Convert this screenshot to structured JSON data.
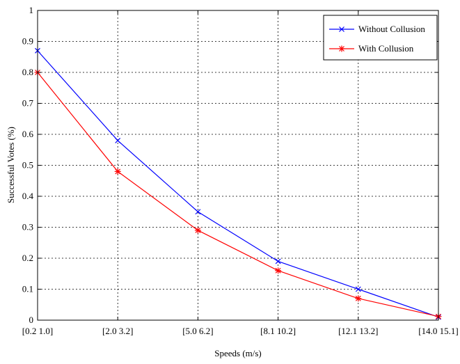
{
  "chart_data": {
    "type": "line",
    "title": "",
    "xlabel": "Speeds (m/s)",
    "ylabel": "Successful Votes (%)",
    "categories": [
      "[0.2 1.0]",
      "[2.0 3.2]",
      "[5.0 6.2]",
      "[8.1 10.2]",
      "[12.1 13.2]",
      "[14.0 15.1]"
    ],
    "yticks": [
      "0",
      "0.1",
      "0.2",
      "0.3",
      "0.4",
      "0.5",
      "0.6",
      "0.7",
      "0.8",
      "0.9",
      "1"
    ],
    "ylim": [
      0,
      1
    ],
    "grid": true,
    "legend_position": "top-right",
    "series": [
      {
        "name": "Without Collusion",
        "color": "#0000ff",
        "marker": "x",
        "values": [
          0.87,
          0.58,
          0.35,
          0.19,
          0.1,
          0.01
        ]
      },
      {
        "name": "With Collusion",
        "color": "#ff0000",
        "marker": "star",
        "values": [
          0.8,
          0.48,
          0.29,
          0.16,
          0.07,
          0.012
        ]
      }
    ]
  }
}
